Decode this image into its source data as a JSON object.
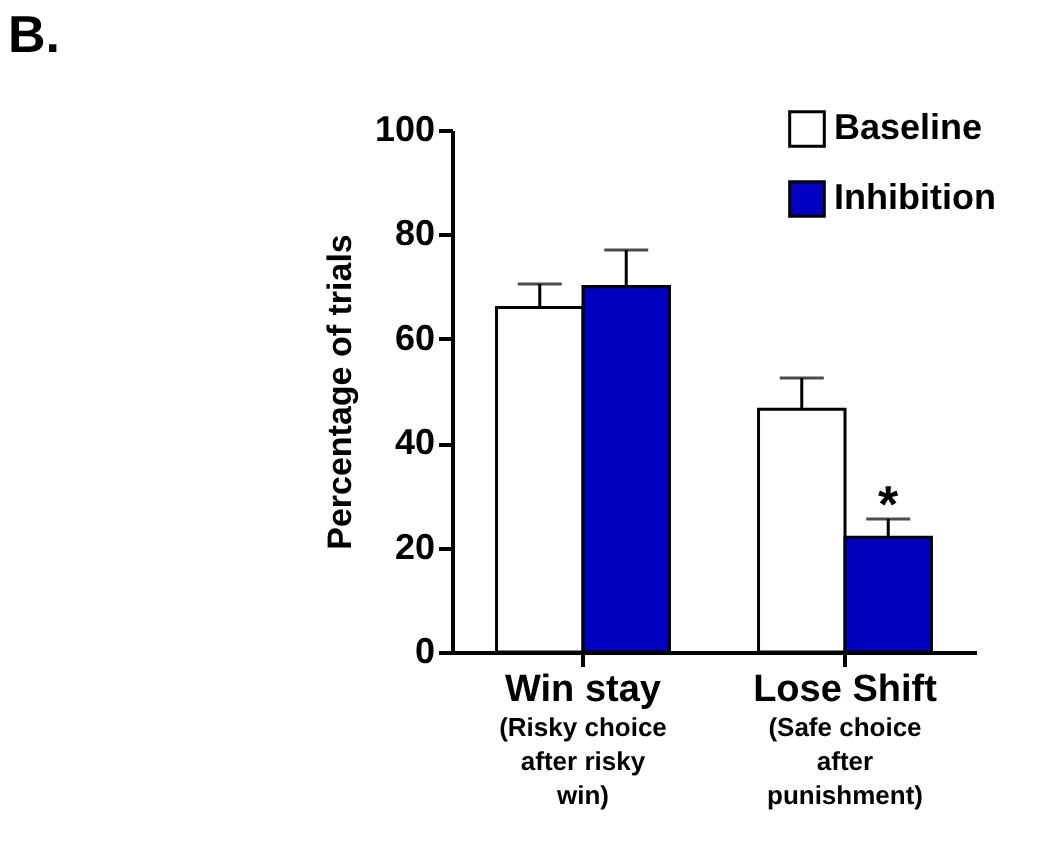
{
  "chart_data": {
    "type": "bar",
    "title": "B.",
    "ylabel": "Percentage of trials",
    "categories": [
      "Win stay",
      "Lose Shift"
    ],
    "series": [
      {
        "name": "Baseline",
        "color": "#ffffff",
        "values": [
          66,
          46.5
        ],
        "errors": [
          [
            66,
            70.5
          ],
          [
            46.5,
            52.5
          ]
        ]
      },
      {
        "name": "Inhibition",
        "color": "#0000c0",
        "values": [
          70,
          22
        ],
        "errors": [
          [
            70,
            77
          ],
          [
            22,
            25.5
          ]
        ]
      }
    ],
    "ylim": [
      0,
      100
    ],
    "yticks": [
      0,
      20,
      40,
      60,
      80,
      100
    ],
    "grid": false,
    "legend": "top right",
    "annotations": [
      {
        "text": "*",
        "x": "Lose Shift",
        "y": 28
      },
      "(Risky choice\nafter risky\nwin)",
      "(Safe choice\nafter\npunishment)"
    ]
  }
}
